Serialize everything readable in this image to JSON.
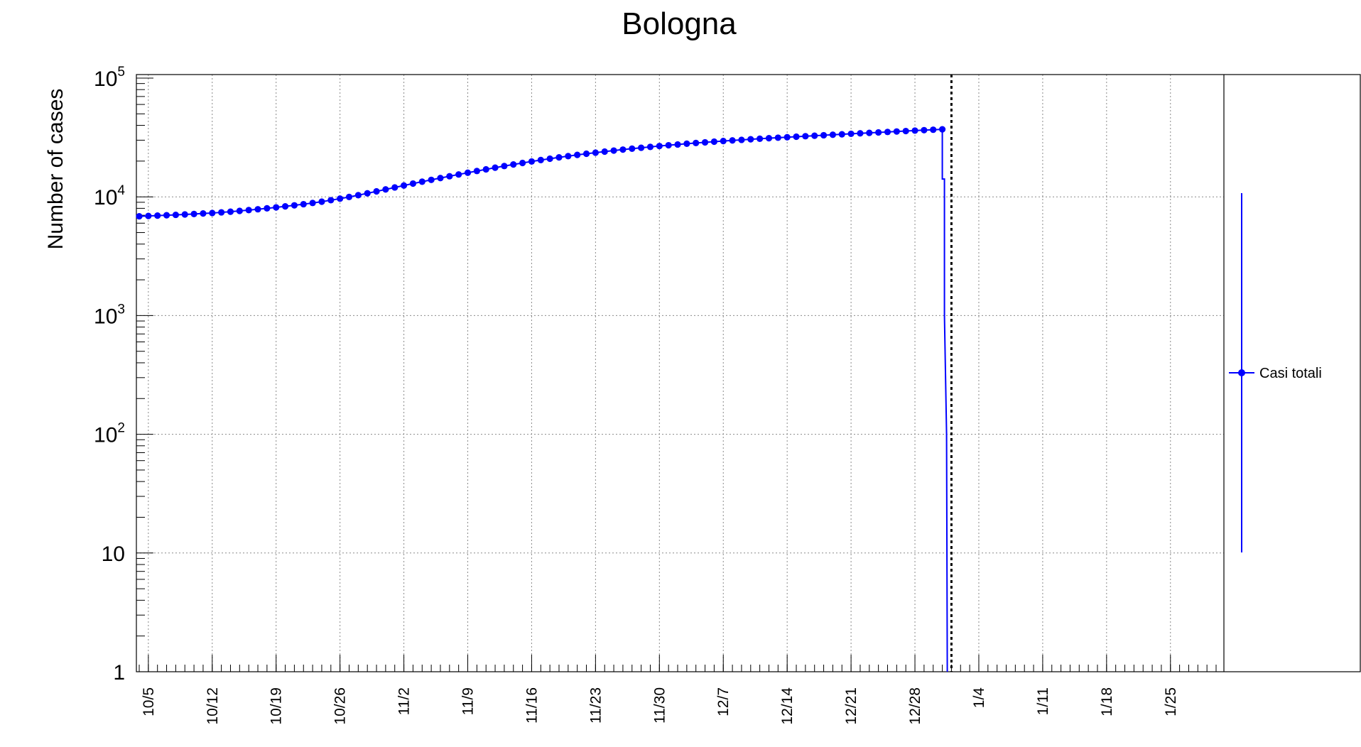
{
  "chart_data": {
    "type": "line",
    "title": "Bologna",
    "ylabel": "Number of cases",
    "xlabel": "",
    "yscale": "log",
    "ylim": [
      1,
      100000
    ],
    "y_ticks": [
      {
        "base": "10",
        "exp": "5",
        "value": 100000
      },
      {
        "base": "10",
        "exp": "4",
        "value": 10000
      },
      {
        "base": "10",
        "exp": "3",
        "value": 1000
      },
      {
        "base": "10",
        "exp": "2",
        "value": 100
      },
      {
        "base": "10",
        "exp": "",
        "value": 10
      },
      {
        "base": "1",
        "exp": "",
        "value": 1
      }
    ],
    "x_ticks": [
      "10/5",
      "10/12",
      "10/19",
      "10/26",
      "11/2",
      "11/9",
      "11/16",
      "11/23",
      "11/30",
      "12/7",
      "12/14",
      "12/21",
      "12/28",
      "1/4",
      "1/11",
      "1/18",
      "1/25"
    ],
    "x_start_date": "2020-10-04",
    "x_end_date": "2021-01-30",
    "grid": true,
    "marker_line_date": "2021-01-01",
    "legend_position": "right",
    "colors": {
      "series": "#0000ff",
      "axis": "#000000",
      "grid": "#8a8a8a"
    },
    "series": [
      {
        "name": "Casi totali",
        "dates": [
          "2020-10-04",
          "2020-10-05",
          "2020-10-06",
          "2020-10-07",
          "2020-10-08",
          "2020-10-09",
          "2020-10-10",
          "2020-10-11",
          "2020-10-12",
          "2020-10-13",
          "2020-10-14",
          "2020-10-15",
          "2020-10-16",
          "2020-10-17",
          "2020-10-18",
          "2020-10-19",
          "2020-10-20",
          "2020-10-21",
          "2020-10-22",
          "2020-10-23",
          "2020-10-24",
          "2020-10-25",
          "2020-10-26",
          "2020-10-27",
          "2020-10-28",
          "2020-10-29",
          "2020-10-30",
          "2020-10-31",
          "2020-11-01",
          "2020-11-02",
          "2020-11-03",
          "2020-11-04",
          "2020-11-05",
          "2020-11-06",
          "2020-11-07",
          "2020-11-08",
          "2020-11-09",
          "2020-11-10",
          "2020-11-11",
          "2020-11-12",
          "2020-11-13",
          "2020-11-14",
          "2020-11-15",
          "2020-11-16",
          "2020-11-17",
          "2020-11-18",
          "2020-11-19",
          "2020-11-20",
          "2020-11-21",
          "2020-11-22",
          "2020-11-23",
          "2020-11-24",
          "2020-11-25",
          "2020-11-26",
          "2020-11-27",
          "2020-11-28",
          "2020-11-29",
          "2020-11-30",
          "2020-12-01",
          "2020-12-02",
          "2020-12-03",
          "2020-12-04",
          "2020-12-05",
          "2020-12-06",
          "2020-12-07",
          "2020-12-08",
          "2020-12-09",
          "2020-12-10",
          "2020-12-11",
          "2020-12-12",
          "2020-12-13",
          "2020-12-14",
          "2020-12-15",
          "2020-12-16",
          "2020-12-17",
          "2020-12-18",
          "2020-12-19",
          "2020-12-20",
          "2020-12-21",
          "2020-12-22",
          "2020-12-23",
          "2020-12-24",
          "2020-12-25",
          "2020-12-26",
          "2020-12-27",
          "2020-12-28",
          "2020-12-29",
          "2020-12-30",
          "2020-12-31"
        ],
        "values": [
          6860,
          6900,
          6950,
          7000,
          7050,
          7110,
          7170,
          7240,
          7310,
          7400,
          7500,
          7610,
          7730,
          7860,
          8000,
          8150,
          8310,
          8480,
          8670,
          8880,
          9110,
          9370,
          9660,
          9980,
          10330,
          10710,
          11120,
          11550,
          12000,
          12460,
          12930,
          13410,
          13900,
          14400,
          14910,
          15430,
          15960,
          16500,
          17050,
          17610,
          18170,
          18730,
          19290,
          19850,
          20410,
          20960,
          21500,
          22030,
          22550,
          23060,
          23560,
          24050,
          24530,
          25000,
          25460,
          25910,
          26350,
          26780,
          27200,
          27610,
          28010,
          28400,
          28780,
          29150,
          29510,
          29860,
          30200,
          30530,
          30850,
          31170,
          31480,
          31790,
          32100,
          32410,
          32720,
          33030,
          33340,
          33650,
          33960,
          34270,
          34580,
          34890,
          35200,
          35510,
          35820,
          36130,
          36440,
          36750,
          37060
        ]
      }
    ]
  }
}
